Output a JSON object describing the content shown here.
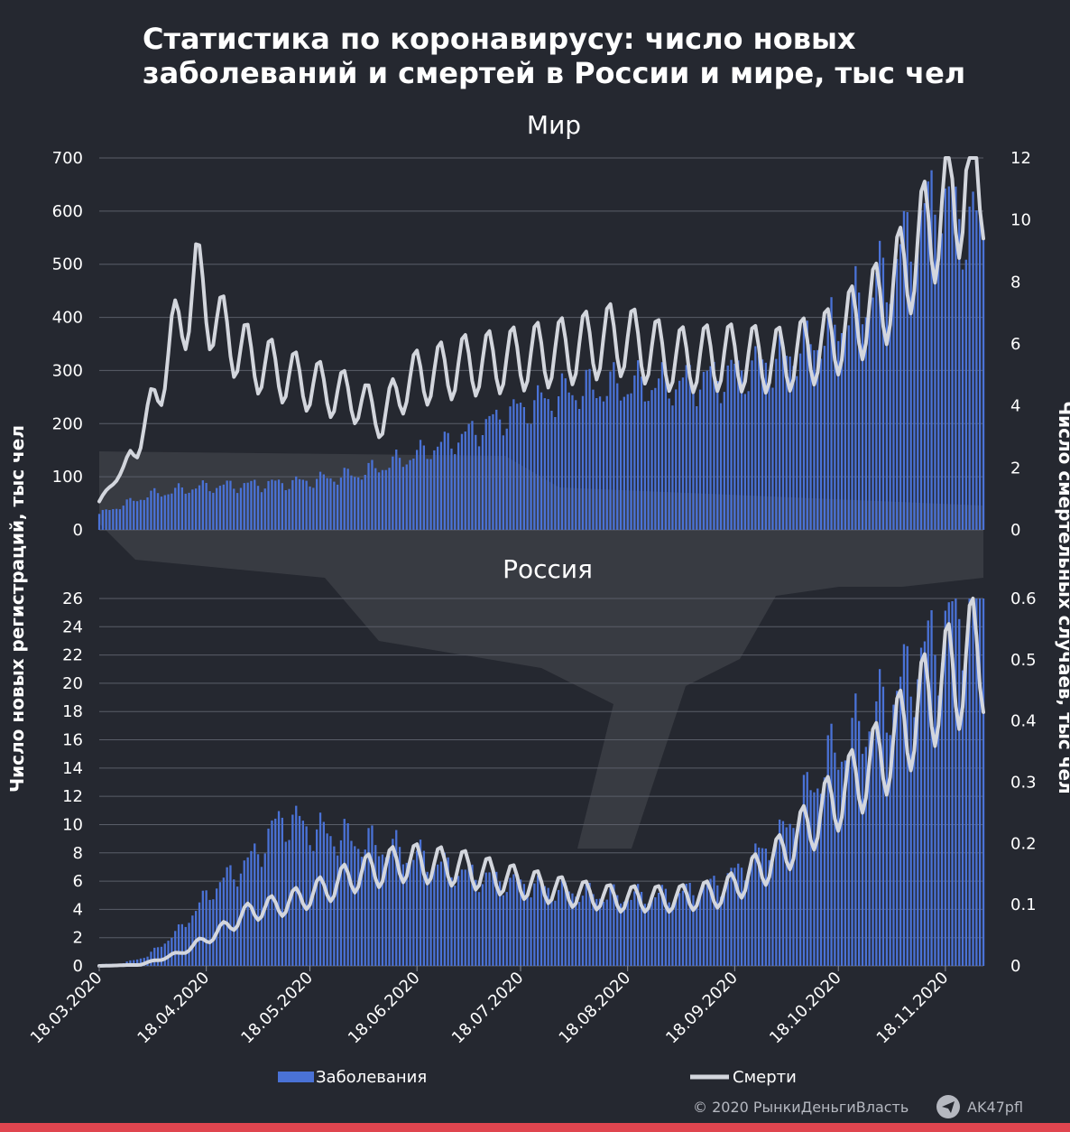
{
  "title": [
    "Статистика по коронавирусу: число новых",
    "заболеваний и смертей в России и мире, тыс чел"
  ],
  "y_left_label": "Число новых регистраций, тыс чел",
  "y_right_label": "Число смертельных случаев, тыс чел",
  "legend": {
    "cases": "Заболевания",
    "deaths": "Смерти"
  },
  "credit": "© 2020  РынкиДеньгиВласть",
  "telegram": "AK47pfl",
  "colors": {
    "background": "#252830",
    "bars": "#4a72d6",
    "line": "#d3d6dd",
    "stripe": "#e0454f"
  },
  "x_ticks": [
    "18.03.2020",
    "18.04.2020",
    "18.05.2020",
    "18.06.2020",
    "18.07.2020",
    "18.08.2020",
    "18.09.2020",
    "18.10.2020",
    "18.11.2020"
  ],
  "chart_data": [
    {
      "type": "bar+line",
      "title": "Мир",
      "x_start": "2020-03-18",
      "x_end": "2020-11-29",
      "left_ylim": [
        0,
        700
      ],
      "left_ticks": [
        0,
        100,
        200,
        300,
        400,
        500,
        600,
        700
      ],
      "right_ylim": [
        0,
        12
      ],
      "right_ticks": [
        0,
        2,
        4,
        6,
        8,
        10,
        12
      ],
      "series": [
        {
          "name": "Заболевания",
          "axis": "left",
          "kind": "bar",
          "x": [
            "2020-03-18",
            "2020-04-01",
            "2020-04-15",
            "2020-05-01",
            "2020-05-15",
            "2020-06-01",
            "2020-06-15",
            "2020-07-01",
            "2020-07-15",
            "2020-08-01",
            "2020-08-15",
            "2020-09-01",
            "2020-09-15",
            "2020-10-01",
            "2020-10-15",
            "2020-11-01",
            "2020-11-15",
            "2020-11-29"
          ],
          "values": [
            30,
            65,
            80,
            85,
            90,
            105,
            135,
            175,
            220,
            260,
            270,
            275,
            290,
            320,
            370,
            480,
            620,
            560
          ]
        },
        {
          "name": "Смерти",
          "axis": "right",
          "kind": "line",
          "x": [
            "2020-03-18",
            "2020-03-25",
            "2020-04-01",
            "2020-04-08",
            "2020-04-15",
            "2020-04-22",
            "2020-05-01",
            "2020-05-15",
            "2020-06-01",
            "2020-06-08",
            "2020-06-15",
            "2020-07-01",
            "2020-07-15",
            "2020-08-01",
            "2020-08-15",
            "2020-09-01",
            "2020-09-15",
            "2020-10-01",
            "2020-10-15",
            "2020-11-01",
            "2020-11-15",
            "2020-11-22",
            "2020-11-29"
          ],
          "values": [
            0.9,
            2.0,
            3.5,
            6.0,
            8.0,
            6.5,
            5.5,
            4.8,
            4.2,
            3.6,
            4.8,
            5.3,
            5.5,
            5.8,
            6.2,
            5.5,
            5.6,
            5.5,
            6.0,
            7.5,
            10.0,
            11.0,
            11.8
          ]
        }
      ]
    },
    {
      "type": "bar+line",
      "title": "Россия",
      "x_start": "2020-03-18",
      "x_end": "2020-11-29",
      "left_ylim": [
        0,
        26
      ],
      "left_ticks": [
        0,
        2,
        4,
        6,
        8,
        10,
        12,
        14,
        16,
        18,
        20,
        22,
        24,
        26
      ],
      "right_ylim": [
        0,
        0.6
      ],
      "right_ticks": [
        0,
        0.1,
        0.2,
        0.3,
        0.4,
        0.5,
        0.6
      ],
      "series": [
        {
          "name": "Заболевания",
          "axis": "left",
          "kind": "bar",
          "x": [
            "2020-03-18",
            "2020-03-25",
            "2020-04-01",
            "2020-04-10",
            "2020-04-20",
            "2020-05-01",
            "2020-05-10",
            "2020-05-20",
            "2020-06-01",
            "2020-06-15",
            "2020-07-01",
            "2020-07-15",
            "2020-08-01",
            "2020-08-15",
            "2020-09-01",
            "2020-09-15",
            "2020-10-01",
            "2020-10-15",
            "2020-11-01",
            "2020-11-15",
            "2020-11-29"
          ],
          "values": [
            0.1,
            0.2,
            0.7,
            2.5,
            5.5,
            7.5,
            10.5,
            9.5,
            8.8,
            8.0,
            6.6,
            5.9,
            5.3,
            4.9,
            5.0,
            6.0,
            9.0,
            14.5,
            18.5,
            23.0,
            26.5
          ]
        },
        {
          "name": "Смерти",
          "axis": "right",
          "kind": "line",
          "x": [
            "2020-03-18",
            "2020-03-30",
            "2020-04-10",
            "2020-04-20",
            "2020-05-01",
            "2020-05-10",
            "2020-05-20",
            "2020-06-01",
            "2020-06-15",
            "2020-07-01",
            "2020-07-15",
            "2020-08-01",
            "2020-08-15",
            "2020-09-01",
            "2020-09-15",
            "2020-10-01",
            "2020-10-15",
            "2020-11-01",
            "2020-11-15",
            "2020-11-29"
          ],
          "values": [
            0.0,
            0.002,
            0.02,
            0.05,
            0.09,
            0.1,
            0.12,
            0.15,
            0.17,
            0.16,
            0.14,
            0.12,
            0.11,
            0.11,
            0.12,
            0.18,
            0.26,
            0.35,
            0.45,
            0.52
          ]
        }
      ]
    }
  ]
}
